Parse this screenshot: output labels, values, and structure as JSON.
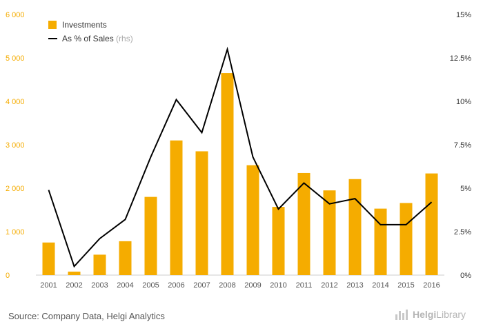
{
  "chart_data": {
    "type": "bar",
    "categories": [
      "2001",
      "2002",
      "2003",
      "2004",
      "2005",
      "2006",
      "2007",
      "2008",
      "2009",
      "2010",
      "2011",
      "2012",
      "2013",
      "2014",
      "2015",
      "2016"
    ],
    "series": [
      {
        "name": "Investments",
        "type": "bar",
        "axis": "left",
        "color": "#f5ac00",
        "values": [
          750,
          80,
          470,
          780,
          1800,
          3100,
          2850,
          4650,
          2530,
          1570,
          2350,
          1950,
          2210,
          1530,
          1660,
          2340
        ]
      },
      {
        "name": "As % of Sales",
        "name_suffix": "(rhs)",
        "type": "line",
        "axis": "right",
        "color": "#000000",
        "values": [
          4.9,
          0.5,
          2.1,
          3.2,
          6.8,
          10.1,
          8.2,
          13.0,
          6.8,
          3.8,
          5.3,
          4.1,
          4.4,
          2.9,
          2.9,
          4.2
        ]
      }
    ],
    "y_left": {
      "ylim": [
        0,
        6000
      ],
      "ticks": [
        0,
        1000,
        2000,
        3000,
        4000,
        5000,
        6000
      ],
      "tick_labels": [
        "0",
        "1 000",
        "2 000",
        "3 000",
        "4 000",
        "5 000",
        "6 000"
      ],
      "color": "#f5ac00"
    },
    "y_right": {
      "ylim": [
        0,
        15
      ],
      "ticks": [
        0,
        2.5,
        5,
        7.5,
        10,
        12.5,
        15
      ],
      "tick_labels": [
        "0%",
        "2.5%",
        "5%",
        "7.5%",
        "10%",
        "12.5%",
        "15%"
      ]
    },
    "legend": "top-left",
    "grid": false
  },
  "footer": {
    "source": "Source: Company Data, Helgi Analytics",
    "logo_text_1": "Helgi",
    "logo_text_2": "Library"
  }
}
